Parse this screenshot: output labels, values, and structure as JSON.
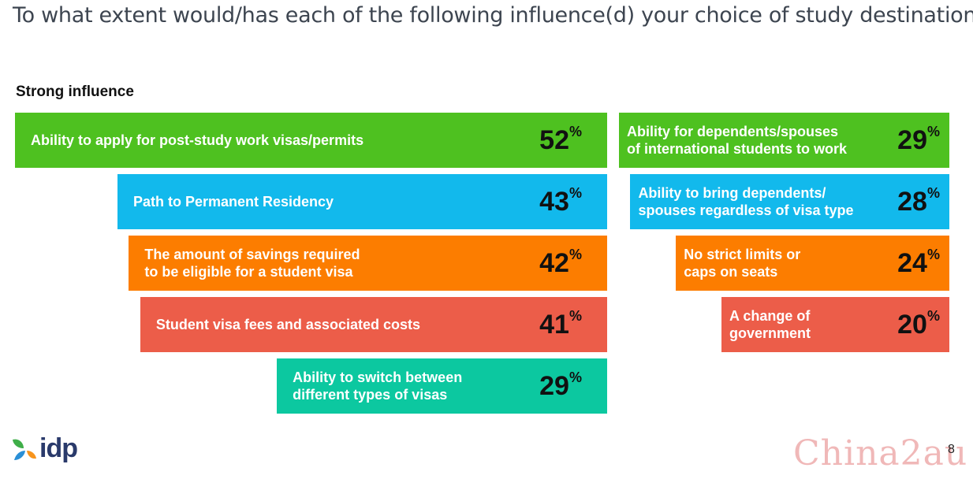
{
  "title": "To what extent would/has each of the following influence(d) your choice of study destination:",
  "subtitle": "Strong influence",
  "colors": {
    "green": "#4ec120",
    "blue": "#12b9ec",
    "orange": "#fc7d00",
    "red": "#ec5d49",
    "teal": "#0cc8a0",
    "logo_navy": "#2a3a6b",
    "logo_green": "#3fae49",
    "logo_blue": "#2a8fd6",
    "logo_orange": "#f7941d"
  },
  "chart_data": {
    "type": "bar",
    "unit": "%",
    "columns": [
      {
        "items": [
          {
            "label": "Ability to apply for post-study work visas/permits",
            "value": 52,
            "color": "green"
          },
          {
            "label": "Path to Permanent Residency",
            "value": 43,
            "color": "blue"
          },
          {
            "label": "The amount of savings required\nto be eligible for a student visa",
            "value": 42,
            "color": "orange"
          },
          {
            "label": "Student visa fees and associated costs",
            "value": 41,
            "color": "red"
          },
          {
            "label": "Ability to switch between\ndifferent types of visas",
            "value": 29,
            "color": "teal"
          }
        ]
      },
      {
        "items": [
          {
            "label": "Ability for dependents/spouses\nof international students to work",
            "value": 29,
            "color": "green"
          },
          {
            "label": "Ability to bring dependents/\nspouses regardless of visa type",
            "value": 28,
            "color": "blue"
          },
          {
            "label": "No strict limits or\ncaps on seats",
            "value": 24,
            "color": "orange"
          },
          {
            "label": "A change of\ngovernment",
            "value": 20,
            "color": "red"
          }
        ]
      }
    ]
  },
  "logo": {
    "text": "idp"
  },
  "page_number": "8",
  "watermark": "China2au"
}
